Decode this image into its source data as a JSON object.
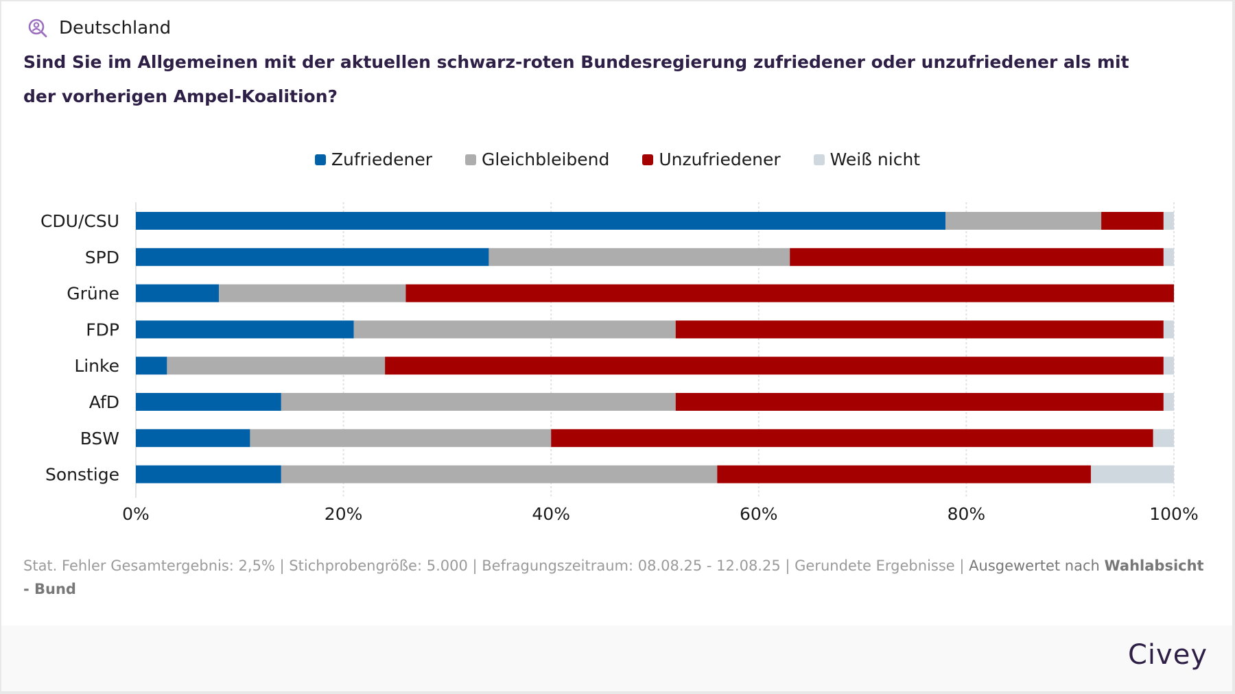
{
  "header": {
    "region_icon": "person-search-icon",
    "region": "Deutschland",
    "question": "Sind Sie im Allgemeinen mit der aktuellen schwarz-roten Bundesregierung zufriedener oder unzufriedener als mit der vorherigen Ampel-Koalition?"
  },
  "colors": {
    "zufriedener": "#0060a8",
    "gleichbleibend": "#adadad",
    "unzufriedener": "#a50000",
    "weiss_nicht": "#d0d8df",
    "title": "#2d1f45",
    "icon": "#9b6fc0"
  },
  "footer": {
    "note": "Stat. Fehler Gesamtergebnis: 2,5% | Stichprobengröße: 5.000 | Befragungszeitraum: 08.08.25 - 12.08.25 | Gerundete Ergebnisse | ",
    "evaluated_prefix": "Ausgewertet nach ",
    "evaluated_by": "Wahlabsicht",
    "evaluated_suffix": "- Bund",
    "brand": "Civey"
  },
  "chart_data": {
    "type": "bar",
    "orientation": "horizontal",
    "stacked": true,
    "title": "Sind Sie im Allgemeinen mit der aktuellen schwarz-roten Bundesregierung zufriedener oder unzufriedener als mit der vorherigen Ampel-Koalition?",
    "xlabel": "",
    "ylabel": "",
    "xlim": [
      0,
      100
    ],
    "x_ticks": [
      "0%",
      "20%",
      "40%",
      "60%",
      "80%",
      "100%"
    ],
    "grid": true,
    "legend_position": "top-center",
    "categories": [
      "CDU/CSU",
      "SPD",
      "Grüne",
      "FDP",
      "Linke",
      "AfD",
      "BSW",
      "Sonstige"
    ],
    "series": [
      {
        "name": "Zufriedener",
        "color": "#0060a8",
        "values": [
          78,
          34,
          8,
          21,
          3,
          14,
          11,
          14
        ]
      },
      {
        "name": "Gleichbleibend",
        "color": "#adadad",
        "values": [
          15,
          29,
          18,
          31,
          21,
          38,
          29,
          42
        ]
      },
      {
        "name": "Unzufriedener",
        "color": "#a50000",
        "values": [
          6,
          36,
          74,
          47,
          75,
          47,
          58,
          36
        ]
      },
      {
        "name": "Weiß nicht",
        "color": "#d0d8df",
        "values": [
          1,
          1,
          0,
          1,
          1,
          1,
          2,
          8
        ]
      }
    ]
  }
}
